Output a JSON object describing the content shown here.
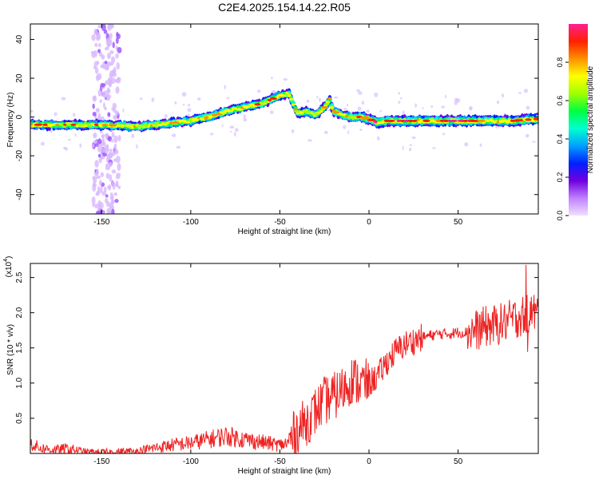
{
  "title": "C2E4.2025.154.14.22.R05",
  "colors": {
    "snr_line": "#ee2222",
    "frame": "#000000",
    "background": "#ffffff"
  },
  "chart_data": [
    {
      "type": "heatmap",
      "xlabel": "Height of straight line (km)",
      "ylabel": "Frequency (Hz)",
      "xlim": [
        -190,
        95
      ],
      "ylim": [
        -50,
        48
      ],
      "xticks": [
        -150,
        -100,
        -50,
        0,
        50
      ],
      "yticks": [
        -40,
        -20,
        0,
        20,
        40
      ],
      "colorbar": {
        "label": "Normalized spectral amplitude",
        "range": [
          0,
          1
        ],
        "ticks": [
          "0.0",
          "0.2",
          "0.4",
          "0.6",
          "0.8"
        ],
        "colormap": [
          "#f0e0ff",
          "#c080ff",
          "#7000e0",
          "#0020ff",
          "#00a0ff",
          "#00ffd0",
          "#00ff40",
          "#a0ff00",
          "#ffff00",
          "#ff9000",
          "#ff2000",
          "#ff2090"
        ]
      },
      "ridge": {
        "x": [
          -190,
          -170,
          -150,
          -130,
          -120,
          -110,
          -100,
          -90,
          -80,
          -70,
          -60,
          -55,
          -50,
          -45,
          -40,
          -35,
          -30,
          -25,
          -22,
          -20,
          -15,
          -10,
          -5,
          0,
          5,
          10,
          20,
          40,
          60,
          80,
          95
        ],
        "y": [
          -4,
          -4,
          -4,
          -5,
          -4,
          -3,
          -2,
          0,
          3,
          5,
          7,
          9,
          11,
          12,
          2,
          3,
          1,
          5,
          9,
          3,
          1,
          0,
          0,
          -1,
          -3,
          -2,
          -2,
          -2,
          -2,
          -2,
          -1
        ]
      },
      "noise_band": {
        "x_range": [
          -155,
          -140
        ],
        "y_range": [
          -50,
          48
        ]
      }
    },
    {
      "type": "line",
      "xlabel": "Height of straight line (km)",
      "ylabel": "SNR (10 * v/v)",
      "exponent_label": "(x10",
      "exponent_sup": "4",
      "xlim": [
        -190,
        95
      ],
      "ylim": [
        0,
        2.7
      ],
      "xticks": [
        -150,
        -100,
        -50,
        0,
        50
      ],
      "yticks": [
        "0.5",
        "1.0",
        "1.5",
        "2.0",
        "2.5"
      ],
      "series": [
        {
          "x": [
            -190,
            -185,
            -180,
            -175,
            -170,
            -165,
            -160,
            -150,
            -140,
            -130,
            -120,
            -110,
            -100,
            -90,
            -80,
            -70,
            -60,
            -50,
            -45,
            -40,
            -35,
            -30,
            -25,
            -20,
            -15,
            -10,
            -5,
            0,
            5,
            10,
            15,
            20,
            25,
            30,
            35,
            40,
            45,
            50,
            55,
            60,
            65,
            70,
            75,
            80,
            85,
            90,
            95
          ],
          "values": [
            0.15,
            0.08,
            0.06,
            0.05,
            0.07,
            0.05,
            0.02,
            0.01,
            0.02,
            0.03,
            0.08,
            0.12,
            0.15,
            0.2,
            0.25,
            0.2,
            0.16,
            0.12,
            0.15,
            0.35,
            0.45,
            0.6,
            0.75,
            0.8,
            0.9,
            1.05,
            1.0,
            1.0,
            1.1,
            1.3,
            1.45,
            1.55,
            1.6,
            1.65,
            1.68,
            1.7,
            1.7,
            1.72,
            1.72,
            1.75,
            1.8,
            1.82,
            1.85,
            1.9,
            1.95,
            2.0,
            2.0
          ]
        }
      ]
    }
  ]
}
